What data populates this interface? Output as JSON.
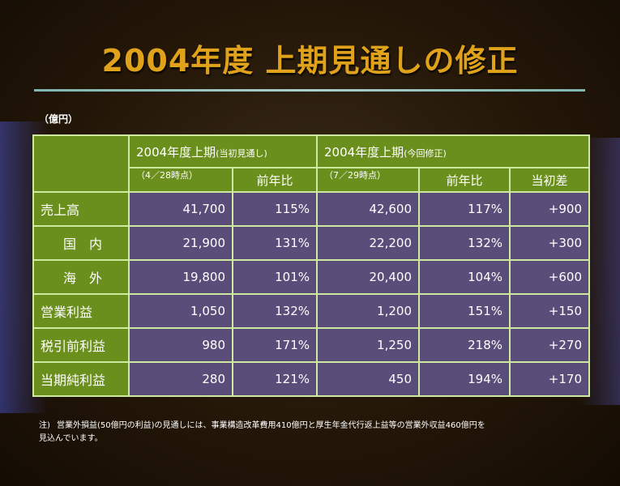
{
  "title": "2004年度 上期見通しの修正",
  "unit": "（億円）",
  "header": {
    "group1_main": "2004年度上期",
    "group1_sub": "(当初見通し)",
    "group1_date": "（4／28時点）",
    "group1_yoy": "前年比",
    "group2_main": "2004年度上期",
    "group2_sub": "(今回修正)",
    "group2_date": "（7／29時点）",
    "group2_yoy": "前年比",
    "group2_diff": "当初差"
  },
  "rows": [
    {
      "label": "売上高",
      "initial": "41,700",
      "initial_yoy": "115%",
      "revised": "42,600",
      "revised_yoy": "117%",
      "diff": "+900"
    },
    {
      "label": "国　内",
      "initial": "21,900",
      "initial_yoy": "131%",
      "revised": "22,200",
      "revised_yoy": "132%",
      "diff": "+300"
    },
    {
      "label": "海　外",
      "initial": "19,800",
      "initial_yoy": "101%",
      "revised": "20,400",
      "revised_yoy": "104%",
      "diff": "+600"
    },
    {
      "label": "営業利益",
      "initial": "1,050",
      "initial_yoy": "132%",
      "revised": "1,200",
      "revised_yoy": "151%",
      "diff": "+150"
    },
    {
      "label": "税引前利益",
      "initial": "980",
      "initial_yoy": "171%",
      "revised": "1,250",
      "revised_yoy": "218%",
      "diff": "+270"
    },
    {
      "label": "当期純利益",
      "initial": "280",
      "initial_yoy": "121%",
      "revised": "450",
      "revised_yoy": "194%",
      "diff": "+170"
    }
  ],
  "note": {
    "mark": "注)",
    "line1": "営業外損益(50億円の利益)の見通しには、事業構造改革費用410億円と厚生年金代行返上益等の営業外収益460億円を",
    "line2": "見込んでいます。"
  },
  "colors": {
    "title": "#e0a21a",
    "header_bg": "#6a8f1c",
    "value_bg": "#5a4d7a",
    "border": "#cfe9a0"
  }
}
